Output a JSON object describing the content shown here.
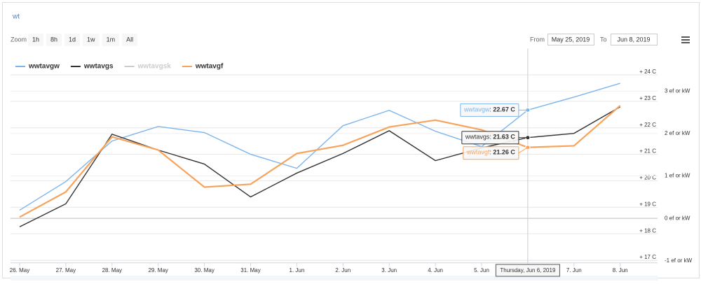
{
  "chart_data": {
    "type": "line",
    "title": "wt",
    "ui": {
      "zoom_label": "Zoom",
      "zoom_buttons": [
        "1h",
        "8h",
        "1d",
        "1w",
        "1m",
        "All"
      ],
      "from_label": "From",
      "from": "May 25, 2019",
      "to_label": "To",
      "to": "Jun 8, 2019"
    },
    "categories": [
      "26. May",
      "27. May",
      "28. May",
      "29. May",
      "30. May",
      "31. May",
      "1. Jun",
      "2. Jun",
      "3. Jun",
      "4. Jun",
      "5. Jun",
      "6. Jun",
      "7. Jun",
      "8. Jun"
    ],
    "tooltip_header": "Thursday, Jun 6, 2019",
    "series": [
      {
        "name": "wwtavgw",
        "color": "#7cb5ec",
        "visible": true,
        "values": [
          18.89,
          19.97,
          21.5,
          22.05,
          21.82,
          21.0,
          20.47,
          22.08,
          22.66,
          21.87,
          21.29,
          22.67,
          23.16,
          23.68
        ],
        "value_labels": [
          null,
          null,
          null,
          null,
          null,
          null,
          null,
          null,
          null,
          null,
          null,
          "22.67 C",
          null,
          null
        ]
      },
      {
        "name": "wwtavgs",
        "color": "#333333",
        "visible": true,
        "values": [
          18.26,
          19.13,
          21.76,
          21.16,
          20.63,
          19.39,
          20.29,
          21.03,
          21.89,
          20.76,
          21.24,
          21.63,
          21.79,
          22.79
        ],
        "value_labels": [
          null,
          null,
          null,
          null,
          null,
          null,
          null,
          null,
          null,
          null,
          null,
          "21.63 C",
          null,
          null
        ]
      },
      {
        "name": "wwtavgsk",
        "color": "#cccccc",
        "visible": false,
        "values": [
          null,
          null,
          null,
          null,
          null,
          null,
          null,
          null,
          null,
          null,
          null,
          null,
          null,
          null
        ]
      },
      {
        "name": "wwtavgf",
        "color": "#f7a35c",
        "visible": true,
        "values": [
          18.63,
          19.58,
          21.66,
          21.16,
          19.76,
          19.87,
          21.03,
          21.34,
          22.03,
          22.29,
          21.92,
          21.26,
          21.32,
          22.84
        ],
        "value_labels": [
          null,
          null,
          null,
          null,
          null,
          null,
          null,
          null,
          null,
          null,
          null,
          "21.26 C",
          null,
          null
        ]
      }
    ],
    "ylim": [
      16.9,
      24.2
    ],
    "yticks": [
      {
        "value": 17,
        "label": "+ 17 C"
      },
      {
        "value": 18,
        "label": "+ 18 C"
      },
      {
        "value": 19,
        "label": "+ 19 C"
      },
      {
        "value": 20,
        "label": "+ 20 C"
      },
      {
        "value": 21,
        "label": "+ 21 C"
      },
      {
        "value": 22,
        "label": "+ 22 C"
      },
      {
        "value": 23,
        "label": "+ 23 C"
      },
      {
        "value": 24,
        "label": "+ 24 C"
      }
    ],
    "y2lim": [
      -1.05,
      3.51
    ],
    "y2ticks": [
      {
        "value": -1,
        "label": "-1 ef or kW"
      },
      {
        "value": 0,
        "label": "0 ef or kW"
      },
      {
        "value": 1,
        "label": "1 ef or kW"
      },
      {
        "value": 2,
        "label": "2 ef or kW"
      },
      {
        "value": 3,
        "label": "3 ef or kW"
      }
    ],
    "grid": true
  }
}
